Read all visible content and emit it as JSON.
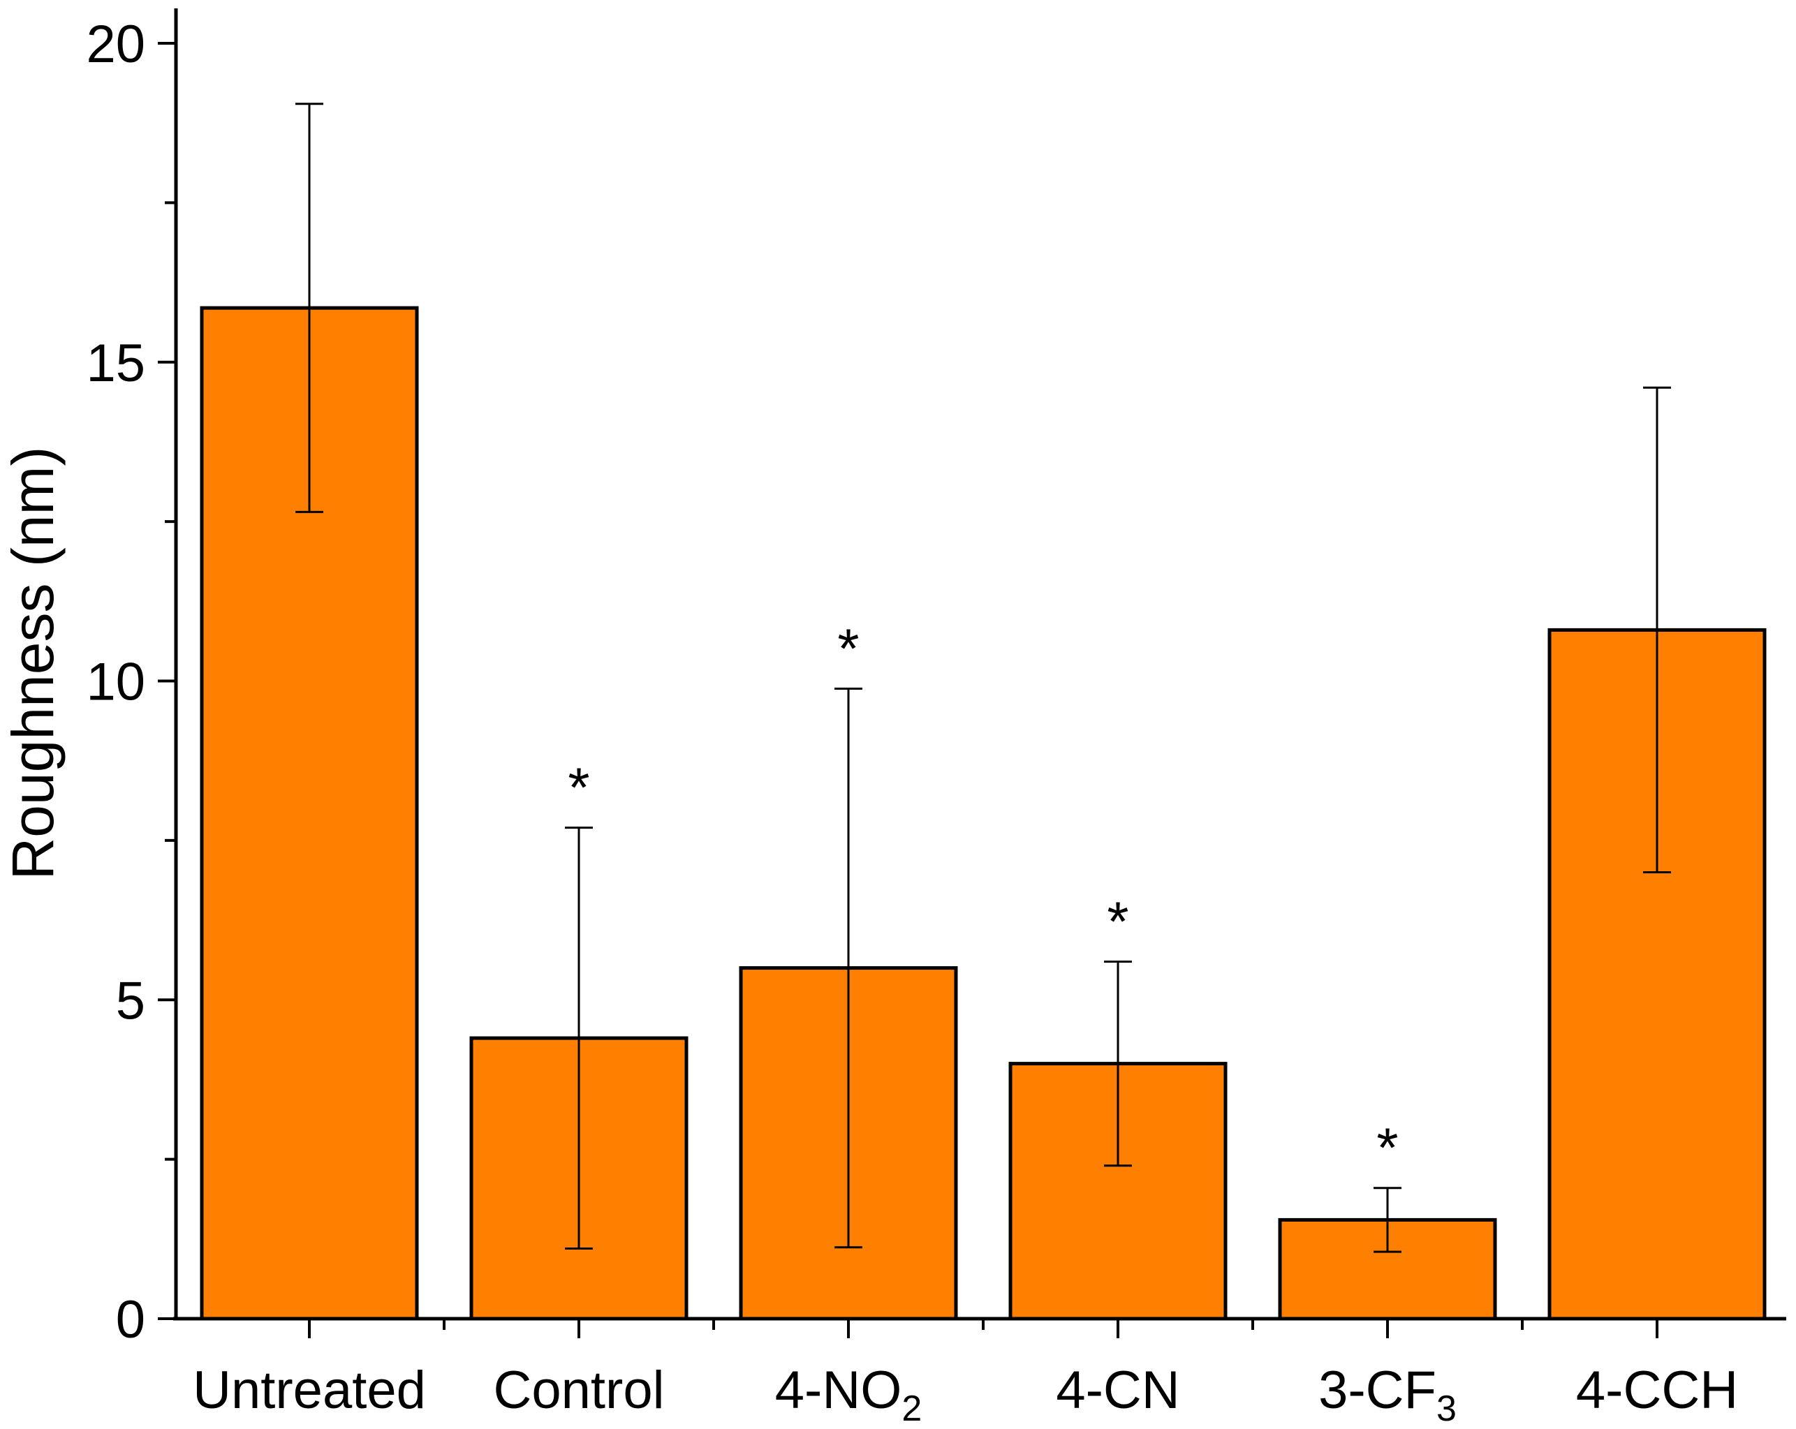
{
  "chart_data": {
    "type": "bar",
    "title": "",
    "xlabel": "",
    "ylabel": "Roughness (nm)",
    "ylim": [
      0,
      20
    ],
    "yticks": [
      0,
      5,
      10,
      15,
      20
    ],
    "y_minor_step": 2.5,
    "bar_color": "#FF8000",
    "categories": [
      {
        "base": "Untreated",
        "sub": ""
      },
      {
        "base": "Control",
        "sub": ""
      },
      {
        "base": "4-NO",
        "sub": "2"
      },
      {
        "base": "4-CN",
        "sub": ""
      },
      {
        "base": "3-CF",
        "sub": "3"
      },
      {
        "base": "4-CCH",
        "sub": ""
      }
    ],
    "values": [
      15.85,
      4.4,
      5.5,
      4.0,
      1.55,
      10.8
    ],
    "errors": [
      3.2,
      3.3,
      4.38,
      1.6,
      0.5,
      3.8
    ],
    "significance": [
      "",
      "*",
      "*",
      "*",
      "*",
      ""
    ]
  }
}
